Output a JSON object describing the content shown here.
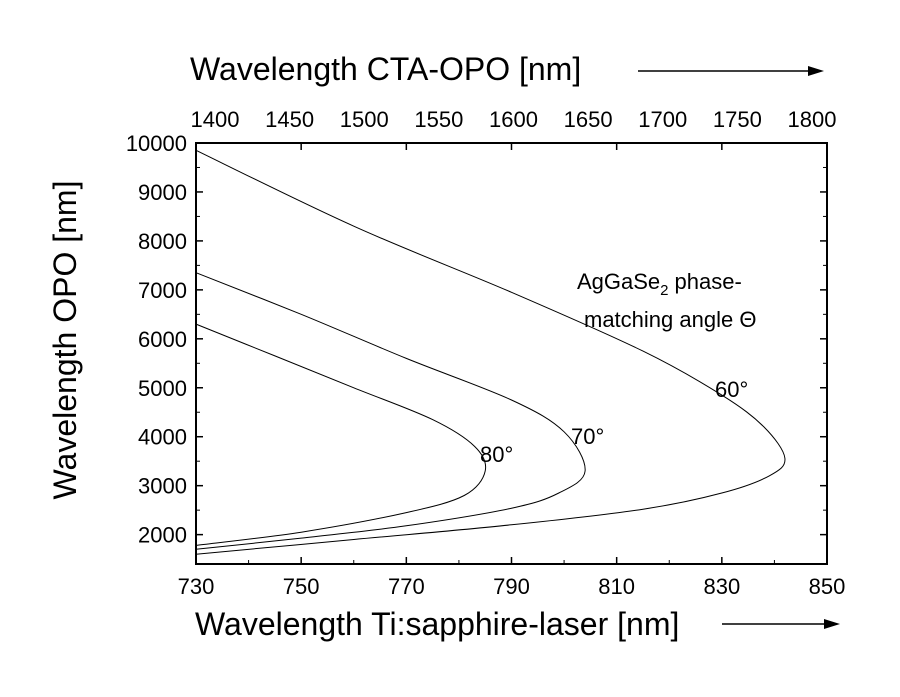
{
  "chart_data": {
    "type": "line",
    "title": "",
    "top_axis": {
      "label": "Wavelength CTA-OPO [nm]",
      "ticks": [
        "1400",
        "1450",
        "1500",
        "1550",
        "1600",
        "1650",
        "1700",
        "1750",
        "1800"
      ]
    },
    "xlabel": "Wavelength Ti:sapphire-laser [nm]",
    "ylabel": "Wavelength OPO [nm]",
    "xlim": [
      730,
      850
    ],
    "ylim": [
      1400,
      10000
    ],
    "xticks": [
      "730",
      "750",
      "770",
      "790",
      "810",
      "830",
      "850"
    ],
    "yticks": [
      "2000",
      "3000",
      "4000",
      "5000",
      "6000",
      "7000",
      "8000",
      "9000",
      "10000"
    ],
    "annotation": {
      "lines": [
        "AgGaSe",
        "phase-",
        "matching angle Θ"
      ],
      "subscript": "2"
    },
    "series": [
      {
        "name": "60°",
        "points": [
          [
            730,
            9850
          ],
          [
            760,
            8300
          ],
          [
            790,
            6950
          ],
          [
            815,
            5750
          ],
          [
            830,
            4850
          ],
          [
            838,
            4200
          ],
          [
            842,
            3560
          ],
          [
            839,
            3200
          ],
          [
            830,
            2850
          ],
          [
            815,
            2520
          ],
          [
            790,
            2200
          ],
          [
            760,
            1900
          ],
          [
            730,
            1600
          ]
        ]
      },
      {
        "name": "70°",
        "points": [
          [
            730,
            7350
          ],
          [
            750,
            6500
          ],
          [
            770,
            5600
          ],
          [
            790,
            4750
          ],
          [
            800,
            4100
          ],
          [
            804,
            3300
          ],
          [
            799,
            2850
          ],
          [
            790,
            2540
          ],
          [
            770,
            2180
          ],
          [
            750,
            1930
          ],
          [
            730,
            1700
          ]
        ]
      },
      {
        "name": "80°",
        "points": [
          [
            730,
            6300
          ],
          [
            745,
            5650
          ],
          [
            760,
            5000
          ],
          [
            775,
            4350
          ],
          [
            783,
            3800
          ],
          [
            785,
            3300
          ],
          [
            781,
            2800
          ],
          [
            770,
            2450
          ],
          [
            750,
            2050
          ],
          [
            730,
            1780
          ]
        ]
      }
    ]
  }
}
